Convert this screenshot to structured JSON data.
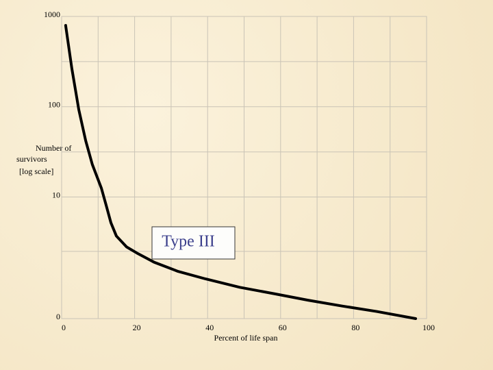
{
  "chart_data": {
    "type": "line",
    "annotation": "Type III",
    "ylabel": [
      "Number of",
      "survivors",
      "[log scale]"
    ],
    "xlabel": "Percent of life span",
    "log_y": true,
    "grid": true,
    "xlim": [
      0,
      100
    ],
    "xticks": [
      0,
      20,
      40,
      60,
      80,
      100
    ],
    "xgrid": [
      10,
      30,
      50,
      70,
      90
    ],
    "ylim": [
      0.45,
      1000
    ],
    "yticks": [
      1000,
      100,
      10,
      {
        "value": 0.45,
        "label": "0"
      }
    ],
    "ygrid": [
      316,
      31.6,
      2.5
    ],
    "color": "#000000",
    "x": [
      1.1,
      2.8,
      4.7,
      6.6,
      8.4,
      10.9,
      12.2,
      13.5,
      15,
      17.8,
      20.6,
      25.3,
      31.9,
      39.4,
      48.8,
      58.2,
      67.5,
      76.9,
      86.3,
      97
    ],
    "values": [
      796,
      265,
      93,
      42,
      23,
      12.5,
      8.1,
      5.2,
      3.7,
      2.8,
      2.4,
      1.9,
      1.5,
      1.24,
      1.0,
      0.85,
      0.72,
      0.62,
      0.54,
      0.45
    ]
  }
}
